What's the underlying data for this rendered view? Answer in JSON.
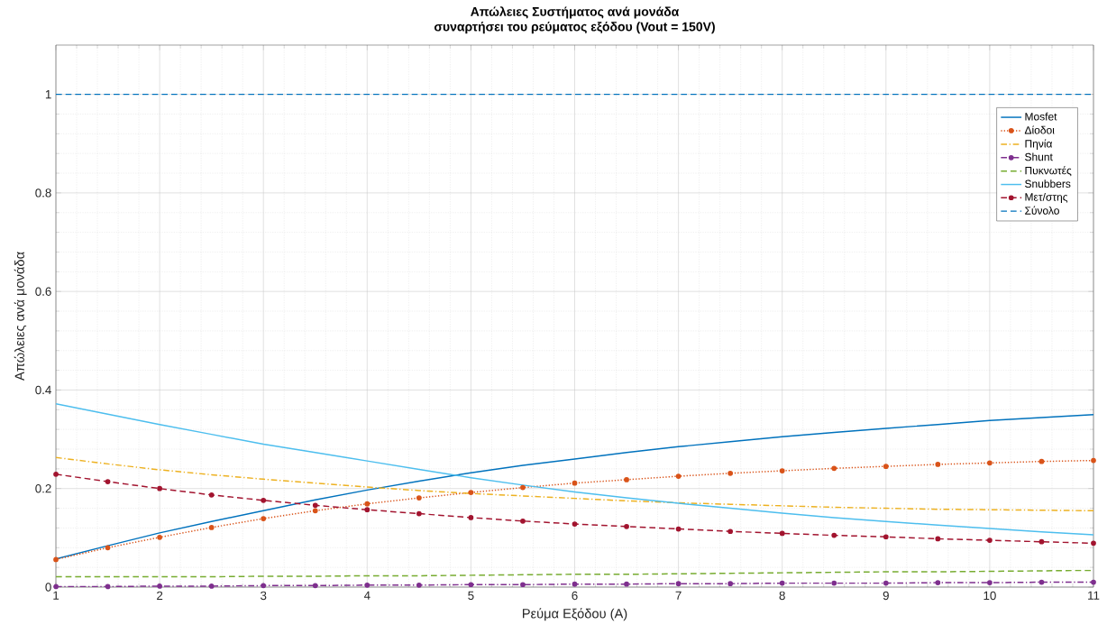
{
  "chart_data": {
    "type": "line",
    "title": "Απώλειες Συστήματος ανά μονάδα",
    "subtitle": "συναρτήσει του ρεύματος εξόδου (Vout = 150V)",
    "xlabel": "Ρεύμα Εξόδου (A)",
    "ylabel": "Απώλειες ανά μονάδα",
    "x": [
      1,
      1.5,
      2,
      2.5,
      3,
      3.5,
      4,
      4.5,
      5,
      5.5,
      6,
      6.5,
      7,
      7.5,
      8,
      8.5,
      9,
      9.5,
      10,
      10.5,
      11
    ],
    "series": [
      {
        "name": "Mosfet",
        "color": "#0072bd",
        "line_style": "solid",
        "marker": "none",
        "values": [
          0.057,
          0.084,
          0.11,
          0.133,
          0.155,
          0.177,
          0.197,
          0.215,
          0.232,
          0.247,
          0.26,
          0.273,
          0.285,
          0.295,
          0.305,
          0.314,
          0.322,
          0.33,
          0.338,
          0.344,
          0.35
        ]
      },
      {
        "name": "Δίοδοι",
        "color": "#d95319",
        "line_style": "dotted",
        "marker": "circle",
        "values": [
          0.056,
          0.08,
          0.101,
          0.121,
          0.139,
          0.155,
          0.169,
          0.181,
          0.192,
          0.202,
          0.211,
          0.218,
          0.225,
          0.231,
          0.236,
          0.241,
          0.245,
          0.249,
          0.252,
          0.255,
          0.257
        ]
      },
      {
        "name": "Πηνία",
        "color": "#edb120",
        "line_style": "dashdot",
        "marker": "none",
        "values": [
          0.263,
          0.25,
          0.238,
          0.228,
          0.219,
          0.211,
          0.203,
          0.196,
          0.19,
          0.185,
          0.18,
          0.175,
          0.171,
          0.168,
          0.165,
          0.162,
          0.16,
          0.158,
          0.157,
          0.156,
          0.155
        ]
      },
      {
        "name": "Shunt",
        "color": "#7e2f8e",
        "line_style": "dashdot",
        "marker": "circle",
        "values": [
          0.001,
          0.001,
          0.002,
          0.002,
          0.003,
          0.003,
          0.004,
          0.004,
          0.005,
          0.005,
          0.006,
          0.006,
          0.007,
          0.007,
          0.008,
          0.008,
          0.008,
          0.009,
          0.009,
          0.01,
          0.01
        ]
      },
      {
        "name": "Πυκνωτές",
        "color": "#77ac30",
        "line_style": "dashed",
        "marker": "none",
        "values": [
          0.021,
          0.021,
          0.021,
          0.021,
          0.022,
          0.022,
          0.023,
          0.023,
          0.024,
          0.025,
          0.026,
          0.026,
          0.027,
          0.028,
          0.029,
          0.03,
          0.031,
          0.031,
          0.032,
          0.033,
          0.034
        ]
      },
      {
        "name": "Snubbers",
        "color": "#4dbeee",
        "line_style": "solid",
        "marker": "none",
        "values": [
          0.372,
          0.351,
          0.33,
          0.31,
          0.29,
          0.273,
          0.256,
          0.239,
          0.222,
          0.207,
          0.193,
          0.181,
          0.17,
          0.16,
          0.15,
          0.141,
          0.133,
          0.126,
          0.119,
          0.112,
          0.106
        ]
      },
      {
        "name": "Μετ/στης",
        "color": "#a2142f",
        "line_style": "dashed",
        "marker": "circle",
        "values": [
          0.229,
          0.214,
          0.2,
          0.187,
          0.176,
          0.166,
          0.157,
          0.149,
          0.141,
          0.134,
          0.128,
          0.123,
          0.118,
          0.113,
          0.109,
          0.105,
          0.102,
          0.098,
          0.095,
          0.092,
          0.089
        ]
      },
      {
        "name": "Σύνολο",
        "color": "#0072bd",
        "line_style": "dashed",
        "marker": "none",
        "values": [
          1,
          1,
          1,
          1,
          1,
          1,
          1,
          1,
          1,
          1,
          1,
          1,
          1,
          1,
          1,
          1,
          1,
          1,
          1,
          1,
          1
        ]
      }
    ],
    "xlim": [
      1,
      11
    ],
    "ylim": [
      0,
      1.1
    ],
    "xticks": [
      1,
      2,
      3,
      4,
      5,
      6,
      7,
      8,
      9,
      10,
      11
    ],
    "yticks": [
      0,
      0.2,
      0.4,
      0.6,
      0.8,
      1
    ],
    "grid": true,
    "legend": "top right"
  }
}
